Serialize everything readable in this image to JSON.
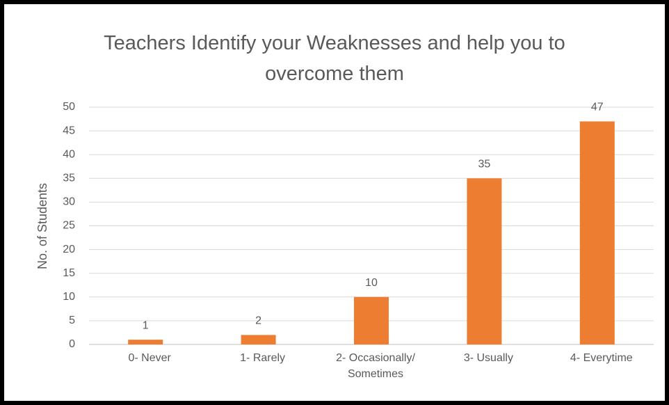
{
  "chart_data": {
    "type": "bar",
    "title": "Teachers Identify your Weaknesses and help you to overcome them",
    "y_label": "No. of Students",
    "categories": [
      "0- Never",
      "1- Rarely",
      "2- Occasionally/ Sometimes",
      "3- Usually",
      "4- Everytime"
    ],
    "values": [
      1,
      2,
      10,
      35,
      47
    ],
    "color": "#ed7d31",
    "ylim": [
      0,
      50
    ],
    "yticks": [
      0,
      5,
      10,
      15,
      20,
      25,
      30,
      35,
      40,
      45,
      50
    ],
    "grid": true
  }
}
